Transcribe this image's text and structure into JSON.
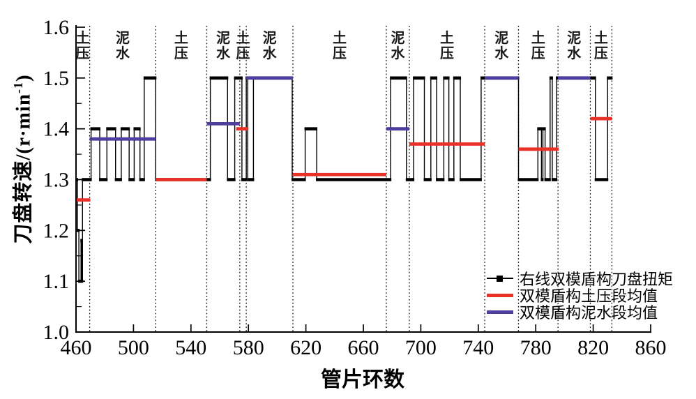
{
  "chart_data": {
    "type": "line",
    "title": "",
    "xlabel": "管片环数",
    "ylabel": "刀盘转速/(r·min⁻¹)",
    "ylabel_prefix": "刀盘转速/(r·min",
    "ylabel_sup": "-1",
    "ylabel_close": ")",
    "xlim": [
      460,
      860
    ],
    "ylim": [
      1.0,
      1.6
    ],
    "x_ticks": [
      "460",
      "500",
      "540",
      "580",
      "620",
      "660",
      "700",
      "740",
      "780",
      "820",
      "860"
    ],
    "x_tick_values": [
      460,
      500,
      540,
      580,
      620,
      660,
      700,
      740,
      780,
      820,
      860
    ],
    "y_ticks": [
      "1.0",
      "1.1",
      "1.2",
      "1.3",
      "1.4",
      "1.5",
      "1.6"
    ],
    "y_tick_values": [
      1.0,
      1.1,
      1.2,
      1.3,
      1.4,
      1.5,
      1.6
    ],
    "y_minor_tick_values": [
      1.05,
      1.15,
      1.25,
      1.35,
      1.45,
      1.55
    ],
    "grid": false,
    "colors": {
      "torque": "#000000",
      "epb_mean": "#e93227",
      "slurry_mean": "#4e3e9e"
    },
    "section_boundaries": [
      469.5,
      515.5,
      551,
      574,
      578.5,
      611,
      676,
      692,
      744.5,
      768,
      795.5,
      818,
      833
    ],
    "sections": [
      {
        "label": "土压",
        "start": 460,
        "end": 469.5
      },
      {
        "label": "泥水",
        "start": 469.5,
        "end": 515.5
      },
      {
        "label": "土压",
        "start": 515.5,
        "end": 551
      },
      {
        "label": "泥水",
        "start": 551,
        "end": 574
      },
      {
        "label": "土压",
        "start": 574,
        "end": 578.5
      },
      {
        "label": "泥水",
        "start": 578.5,
        "end": 611
      },
      {
        "label": "土压",
        "start": 611,
        "end": 676
      },
      {
        "label": "泥水",
        "start": 676,
        "end": 692
      },
      {
        "label": "土压",
        "start": 692,
        "end": 744.5
      },
      {
        "label": "泥水",
        "start": 744.5,
        "end": 768
      },
      {
        "label": "土压",
        "start": 768,
        "end": 795.5
      },
      {
        "label": "泥水",
        "start": 795.5,
        "end": 818
      },
      {
        "label": "土压",
        "start": 818,
        "end": 833
      }
    ],
    "series": [
      {
        "name": "右线双模盾构刀盘扭矩",
        "type": "step",
        "color": "#000000",
        "points": [
          [
            460,
            1.3
          ],
          [
            461,
            1.3
          ],
          [
            461,
            1.2
          ],
          [
            462,
            1.2
          ],
          [
            462,
            1.1
          ],
          [
            463.5,
            1.1
          ],
          [
            463.5,
            1.18
          ],
          [
            464,
            1.18
          ],
          [
            464,
            1.1
          ],
          [
            464.5,
            1.1
          ],
          [
            464.5,
            1.3
          ],
          [
            470.5,
            1.3
          ],
          [
            470.5,
            1.4
          ],
          [
            476.5,
            1.4
          ],
          [
            476.5,
            1.3
          ],
          [
            481.5,
            1.3
          ],
          [
            481.5,
            1.4
          ],
          [
            487.5,
            1.4
          ],
          [
            487.5,
            1.3
          ],
          [
            491.5,
            1.3
          ],
          [
            491.5,
            1.4
          ],
          [
            497,
            1.4
          ],
          [
            497,
            1.3
          ],
          [
            500.5,
            1.3
          ],
          [
            500.5,
            1.4
          ],
          [
            504.5,
            1.4
          ],
          [
            504.5,
            1.3
          ],
          [
            507.5,
            1.3
          ],
          [
            507.5,
            1.5
          ],
          [
            515.5,
            1.5
          ],
          [
            515.5,
            1.3
          ],
          [
            553.5,
            1.3
          ],
          [
            553.5,
            1.5
          ],
          [
            565.5,
            1.5
          ],
          [
            565.5,
            1.3
          ],
          [
            570.5,
            1.3
          ],
          [
            570.5,
            1.5
          ],
          [
            575.5,
            1.5
          ],
          [
            575.5,
            1.3
          ],
          [
            578.5,
            1.3
          ],
          [
            578.5,
            1.5
          ],
          [
            579.5,
            1.5
          ],
          [
            579.5,
            1.3
          ],
          [
            583.5,
            1.3
          ],
          [
            583.5,
            1.5
          ],
          [
            610.5,
            1.5
          ],
          [
            610.5,
            1.3
          ],
          [
            619.5,
            1.3
          ],
          [
            619.5,
            1.4
          ],
          [
            627.5,
            1.4
          ],
          [
            627.5,
            1.3
          ],
          [
            679,
            1.3
          ],
          [
            679,
            1.5
          ],
          [
            690,
            1.5
          ],
          [
            690,
            1.3
          ],
          [
            695,
            1.3
          ],
          [
            695,
            1.5
          ],
          [
            702.5,
            1.5
          ],
          [
            702.5,
            1.3
          ],
          [
            707,
            1.3
          ],
          [
            707,
            1.5
          ],
          [
            711,
            1.5
          ],
          [
            711,
            1.3
          ],
          [
            716,
            1.3
          ],
          [
            716,
            1.5
          ],
          [
            719.5,
            1.5
          ],
          [
            719.5,
            1.3
          ],
          [
            723,
            1.3
          ],
          [
            723,
            1.5
          ],
          [
            727.5,
            1.5
          ],
          [
            727.5,
            1.3
          ],
          [
            742,
            1.3
          ],
          [
            742,
            1.5
          ],
          [
            768,
            1.5
          ],
          [
            768,
            1.3
          ],
          [
            781.5,
            1.3
          ],
          [
            781.5,
            1.4
          ],
          [
            784,
            1.4
          ],
          [
            784,
            1.3
          ],
          [
            785,
            1.3
          ],
          [
            785,
            1.4
          ],
          [
            786.5,
            1.4
          ],
          [
            786.5,
            1.3
          ],
          [
            790,
            1.3
          ],
          [
            790,
            1.5
          ],
          [
            791.5,
            1.5
          ],
          [
            791.5,
            1.3
          ],
          [
            794.5,
            1.3
          ],
          [
            794.5,
            1.5
          ],
          [
            821.5,
            1.5
          ],
          [
            821.5,
            1.3
          ],
          [
            830,
            1.3
          ],
          [
            830,
            1.5
          ],
          [
            833,
            1.5
          ]
        ]
      },
      {
        "name": "双模盾构土压段均值",
        "type": "segments",
        "color": "#e93227",
        "segments": [
          [
            460,
            470,
            1.26
          ],
          [
            515.5,
            551,
            1.3
          ],
          [
            571.5,
            580,
            1.4
          ],
          [
            611,
            676,
            1.31
          ],
          [
            692,
            744.5,
            1.37
          ],
          [
            768,
            796,
            1.36
          ],
          [
            818,
            833,
            1.42
          ]
        ]
      },
      {
        "name": "双模盾构泥水段均值",
        "type": "segments",
        "color": "#4e3e9e",
        "segments": [
          [
            469.5,
            515.5,
            1.38
          ],
          [
            551,
            574,
            1.41
          ],
          [
            578.5,
            611,
            1.5
          ],
          [
            676,
            692,
            1.4
          ],
          [
            744.5,
            768,
            1.5
          ],
          [
            795.5,
            818,
            1.5
          ]
        ]
      }
    ],
    "legend": {
      "items": [
        {
          "label": "右线双模盾构刀盘扭矩",
          "color": "#000000",
          "marker": "line-square"
        },
        {
          "label": "双模盾构土压段均值",
          "color": "#e93227",
          "marker": "thick-line"
        },
        {
          "label": "双模盾构泥水段均值",
          "color": "#4e3e9e",
          "marker": "thick-line"
        }
      ]
    }
  }
}
